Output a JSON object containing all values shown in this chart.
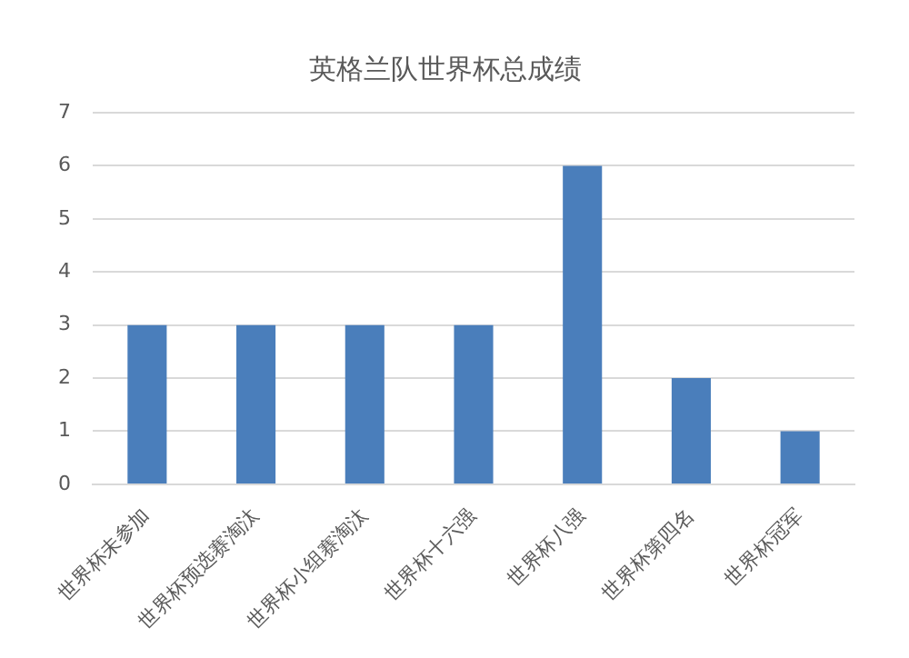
{
  "chart_data": {
    "type": "bar",
    "title": "英格兰队世界杯总成绩",
    "categories": [
      "世界杯未参加",
      "世界杯预选赛淘汰",
      "世界杯小组赛淘汰",
      "世界杯十六强",
      "世界杯八强",
      "世界杯第四名",
      "世界杯冠军"
    ],
    "values": [
      3,
      3,
      3,
      3,
      6,
      2,
      1
    ],
    "color": "#4a7ebb",
    "ylim": [
      0,
      7
    ],
    "yticks": [
      0,
      1,
      2,
      3,
      4,
      5,
      6,
      7
    ],
    "grid": "y",
    "legend": false
  }
}
